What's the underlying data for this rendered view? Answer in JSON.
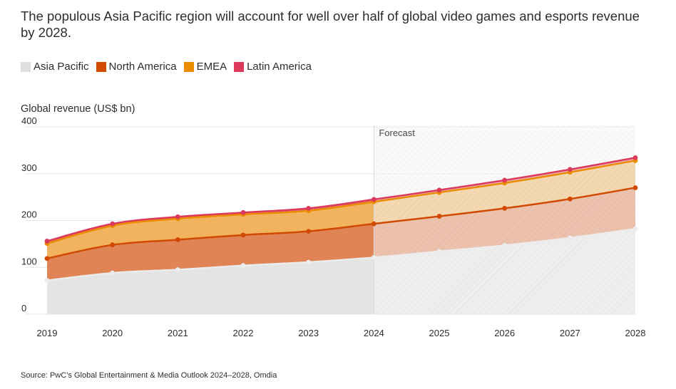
{
  "title": "The populous Asia Pacific region will account for well over half of global video games and esports revenue by 2028.",
  "source": "Source: PwC’s Global Entertainment & Media Outlook 2024–2028, Omdia",
  "chart_data": {
    "type": "area",
    "stacked": true,
    "ylabel": "Global revenue (US$ bn)",
    "xlabel": "",
    "x": [
      2019,
      2020,
      2021,
      2022,
      2023,
      2024,
      2025,
      2026,
      2027,
      2028
    ],
    "ylim": [
      0,
      400
    ],
    "yticks": [
      0,
      100,
      200,
      300,
      400
    ],
    "grid": true,
    "legend_position": "top-left",
    "forecast": {
      "label": "Forecast",
      "from": 2024,
      "to": 2028
    },
    "series": [
      {
        "name": "Asia Pacific",
        "color": "#dedede",
        "values": [
          72,
          88,
          95,
          104,
          111,
          121,
          134,
          147,
          163,
          182
        ]
      },
      {
        "name": "North America",
        "color": "#d04a02",
        "values": [
          47,
          60,
          64,
          65,
          66,
          72,
          75,
          79,
          83,
          88
        ]
      },
      {
        "name": "EMEA",
        "color": "#eb8c00",
        "values": [
          32,
          41,
          45,
          44,
          44,
          47,
          51,
          54,
          57,
          58
        ]
      },
      {
        "name": "Latin America",
        "color": "#db3a5a",
        "values": [
          5,
          4,
          4,
          4,
          5,
          5,
          5,
          6,
          6,
          6
        ]
      }
    ]
  }
}
